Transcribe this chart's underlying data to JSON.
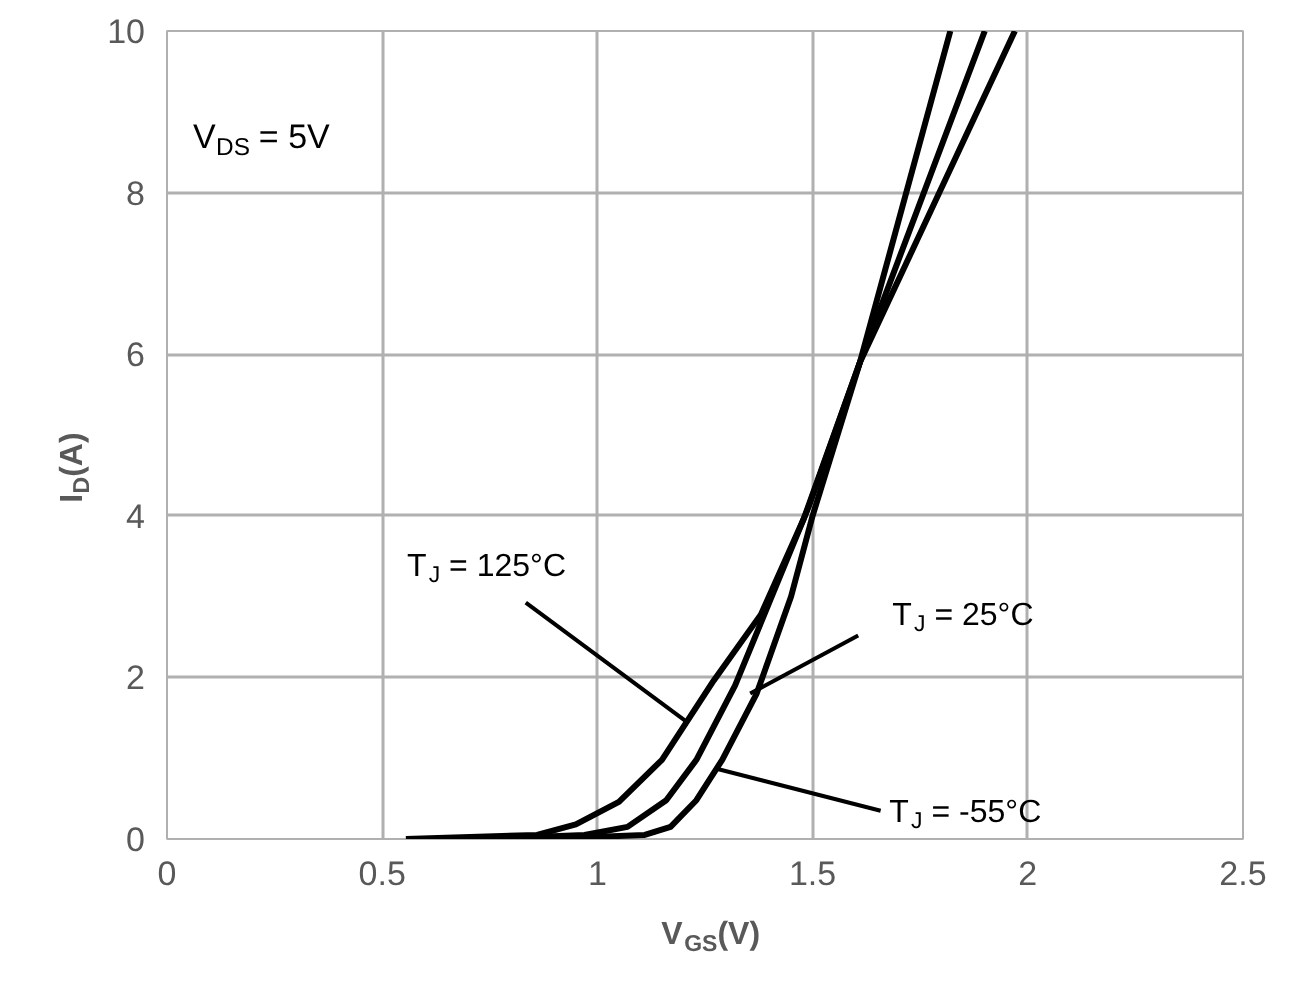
{
  "chart_data": {
    "type": "line",
    "xlabel": "V$_{GS}$(V)",
    "ylabel": "I$_{D}$(A)",
    "xlim": [
      0,
      2.5
    ],
    "ylim": [
      0,
      10
    ],
    "xticks": [
      0,
      0.5,
      1,
      1.5,
      2,
      2.5
    ],
    "yticks": [
      0,
      2,
      4,
      6,
      8,
      10
    ],
    "grid": true,
    "line_style": "solid",
    "marker": "none",
    "series": [
      {
        "color": "#000000",
        "x": [
          0.555,
          0.86,
          0.95,
          1.05,
          1.15,
          1.27,
          1.38,
          1.48,
          1.61,
          1.97
        ],
        "values": [
          0,
          0.05,
          0.18,
          0.46,
          0.98,
          1.96,
          2.78,
          3.97,
          5.9,
          10
        ]
      },
      {
        "color": "#000000",
        "x": [
          0.74,
          0.97,
          1.07,
          1.16,
          1.23,
          1.32,
          1.49,
          1.61,
          1.9
        ],
        "values": [
          0,
          0.05,
          0.15,
          0.48,
          0.98,
          1.9,
          4.1,
          5.9,
          10
        ]
      },
      {
        "color": "#000000",
        "x": [
          0.87,
          1.11,
          1.17,
          1.23,
          1.29,
          1.37,
          1.45,
          1.5,
          1.61,
          1.82
        ],
        "values": [
          0,
          0.05,
          0.15,
          0.48,
          0.98,
          1.8,
          3.0,
          4.0,
          5.9,
          10
        ]
      }
    ],
    "annotations": [
      "V$_{DS}$ = 5V",
      {
        "text": "T$_{J}$ = 125°C",
        "x": 1.21,
        "y": 1.44
      },
      {
        "text": "T$_{J}$ = 25°C",
        "x": 1.355,
        "y": 1.8
      },
      {
        "text": "T$_{J}$ = -55°C",
        "x": 1.277,
        "y": 0.87
      }
    ]
  }
}
